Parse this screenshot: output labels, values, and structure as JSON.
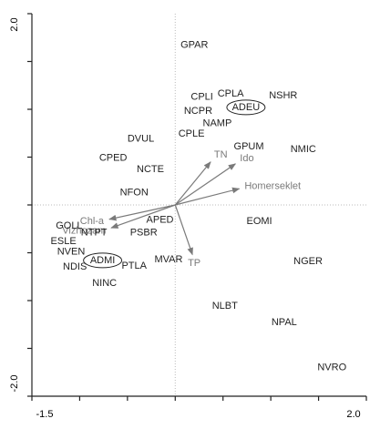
{
  "chart_data": {
    "type": "biplot",
    "xlim": [
      -1.5,
      2.0
    ],
    "ylim": [
      -2.0,
      2.0
    ],
    "xticks": [
      {
        "value": -1.5,
        "label": "-1.5"
      },
      {
        "value": 2.0,
        "label": "2.0"
      }
    ],
    "yticks": [
      {
        "value": 2.0,
        "label": "2.0"
      },
      {
        "value": -2.0,
        "label": "-2.0"
      }
    ],
    "xminorticks": [
      -1.0,
      -0.5,
      0,
      0.5,
      1.0,
      1.5
    ],
    "yminorticks": [
      1.5,
      1.0,
      0.5,
      0,
      -0.5,
      -1.0,
      -1.5
    ],
    "zero_lines": true,
    "point_color": "#222222",
    "vector_color": "#7a7a7a",
    "points": [
      {
        "name": "GPAR",
        "x": 0.2,
        "y": 1.67
      },
      {
        "name": "CPLI",
        "x": 0.28,
        "y": 1.13
      },
      {
        "name": "CPLA",
        "x": 0.58,
        "y": 1.16
      },
      {
        "name": "NSHR",
        "x": 1.13,
        "y": 1.14
      },
      {
        "name": "ADEU",
        "x": 0.74,
        "y": 1.02,
        "circled": true
      },
      {
        "name": "NCPR",
        "x": 0.24,
        "y": 0.98
      },
      {
        "name": "NAMP",
        "x": 0.44,
        "y": 0.85
      },
      {
        "name": "CPLE",
        "x": 0.17,
        "y": 0.74
      },
      {
        "name": "DVUL",
        "x": -0.36,
        "y": 0.69
      },
      {
        "name": "CPED",
        "x": -0.65,
        "y": 0.49
      },
      {
        "name": "NCTE",
        "x": -0.26,
        "y": 0.37
      },
      {
        "name": "NFON",
        "x": -0.43,
        "y": 0.13
      },
      {
        "name": "GPUM",
        "x": 0.77,
        "y": 0.61
      },
      {
        "name": "NMIC",
        "x": 1.34,
        "y": 0.58
      },
      {
        "name": "EOMI",
        "x": 0.88,
        "y": -0.17
      },
      {
        "name": "GOLL",
        "x": -1.11,
        "y": -0.22
      },
      {
        "name": "NTPT",
        "x": -0.85,
        "y": -0.29
      },
      {
        "name": "APED",
        "x": -0.16,
        "y": -0.16
      },
      {
        "name": "PSBR",
        "x": -0.33,
        "y": -0.29
      },
      {
        "name": "ESLE",
        "x": -1.17,
        "y": -0.38
      },
      {
        "name": "NVEN",
        "x": -1.09,
        "y": -0.49
      },
      {
        "name": "NDIS",
        "x": -1.05,
        "y": -0.65
      },
      {
        "name": "ADMI",
        "x": -0.76,
        "y": -0.58,
        "circled": true
      },
      {
        "name": "PTLA",
        "x": -0.43,
        "y": -0.64
      },
      {
        "name": "MVAR",
        "x": -0.07,
        "y": -0.57
      },
      {
        "name": "NINC",
        "x": -0.74,
        "y": -0.82
      },
      {
        "name": "NGER",
        "x": 1.39,
        "y": -0.59
      },
      {
        "name": "NLBT",
        "x": 0.52,
        "y": -1.06
      },
      {
        "name": "NPAL",
        "x": 1.14,
        "y": -1.23
      },
      {
        "name": "NVRO",
        "x": 1.64,
        "y": -1.7
      }
    ],
    "vectors": [
      {
        "name": "TN",
        "x": 0.37,
        "y": 0.45
      },
      {
        "name": "Ido",
        "x": 0.63,
        "y": 0.43
      },
      {
        "name": "Homerseklet",
        "x": 0.67,
        "y": 0.17
      },
      {
        "name": "Chl-a",
        "x": -0.69,
        "y": -0.15
      },
      {
        "name": "Vizhozam",
        "x": -0.67,
        "y": -0.24
      },
      {
        "name": "TP",
        "x": 0.18,
        "y": -0.52
      }
    ]
  }
}
